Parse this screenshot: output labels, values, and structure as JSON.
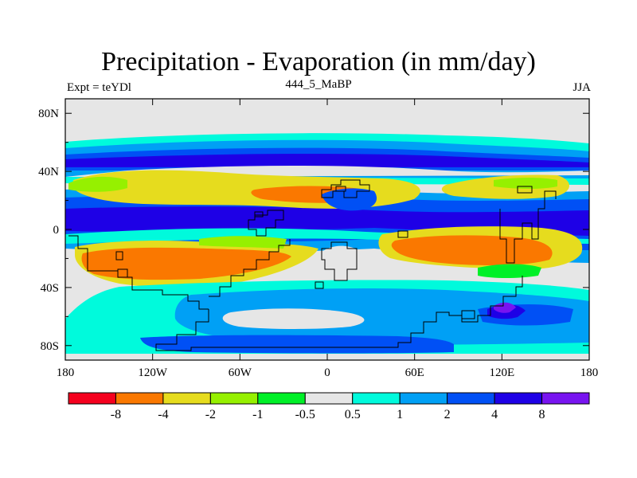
{
  "title": "Precipitation - Evaporation (in mm/day)",
  "left_string": "Expt = teYDl",
  "center_string": "444_5_MaBP",
  "right_string": "JJA",
  "lat_labels": [
    "80N",
    "40N",
    "0",
    "40S",
    "80S"
  ],
  "lat_values": [
    80,
    40,
    0,
    -40,
    -80
  ],
  "lon_labels": [
    "180",
    "120W",
    "60W",
    "0",
    "60E",
    "120E",
    "180"
  ],
  "lon_values": [
    -180,
    -120,
    -60,
    0,
    60,
    120,
    180
  ],
  "colorbar": {
    "colors": [
      "#f5001e",
      "#fa7800",
      "#e6dc1e",
      "#96f000",
      "#00f028",
      "#e6e6e6",
      "#00fadc",
      "#00a0f5",
      "#0050f5",
      "#1e00e6",
      "#7814f0"
    ],
    "labels": [
      "-8",
      "-4",
      "-2",
      "-1",
      "-0.5",
      "0.5",
      "1",
      "2",
      "4",
      "8"
    ]
  }
}
